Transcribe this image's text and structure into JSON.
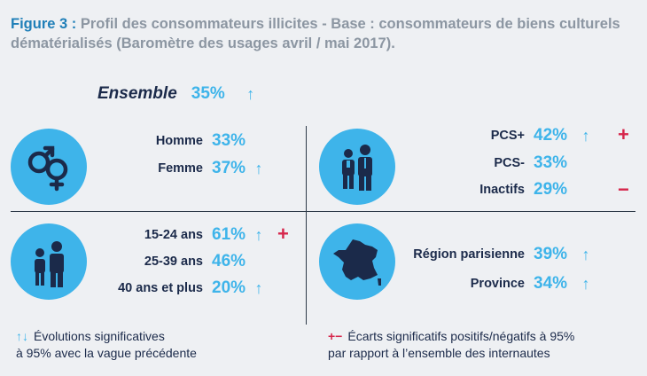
{
  "title": {
    "figure_label": "Figure 3 :",
    "text": "Profil des consommateurs illicites - Base : consommateurs de biens culturels dématérialisés (Baromètre des usages avril / mai 2017)."
  },
  "ensemble": {
    "label": "Ensemble",
    "value": "35%",
    "arrow": "↑"
  },
  "quadrants": {
    "gender": {
      "icon": "gender-symbols-icon",
      "rows": [
        {
          "label": "Homme",
          "value": "33%",
          "arrow": ""
        },
        {
          "label": "Femme",
          "value": "37%",
          "arrow": "↑"
        }
      ]
    },
    "pcs": {
      "icon": "workers-icon",
      "rows": [
        {
          "label": "PCS+",
          "value": "42%",
          "arrow": "↑",
          "sign": "+"
        },
        {
          "label": "PCS-",
          "value": "33%",
          "arrow": ""
        },
        {
          "label": "Inactifs",
          "value": "29%",
          "arrow": "",
          "sign": "−"
        }
      ]
    },
    "age": {
      "icon": "people-icon",
      "rows": [
        {
          "label": "15-24 ans",
          "value": "61%",
          "arrow": "↑",
          "sign": "+"
        },
        {
          "label": "25-39 ans",
          "value": "46%",
          "arrow": ""
        },
        {
          "label": "40 ans et plus",
          "value": "20%",
          "arrow": "↑"
        }
      ]
    },
    "region": {
      "icon": "france-map-icon",
      "rows": [
        {
          "label": "Région parisienne",
          "value": "39%",
          "arrow": "↑"
        },
        {
          "label": "Province",
          "value": "34%",
          "arrow": "↑"
        }
      ]
    }
  },
  "legend": {
    "evolution_symbol": "↑↓",
    "evolution_text_1": "Évolutions significatives",
    "evolution_text_2": "à 95% avec la vague précédente",
    "ecart_symbol": "+−",
    "ecart_text_1": "Écarts significatifs positifs/négatifs à 95%",
    "ecart_text_2": "par rapport à l’ensemble des internautes"
  },
  "colors": {
    "accent": "#3eb4ea",
    "negative": "#d6264b",
    "text": "#1b2a4a",
    "title": "#8c96a2",
    "figure": "#1f7fb8"
  }
}
